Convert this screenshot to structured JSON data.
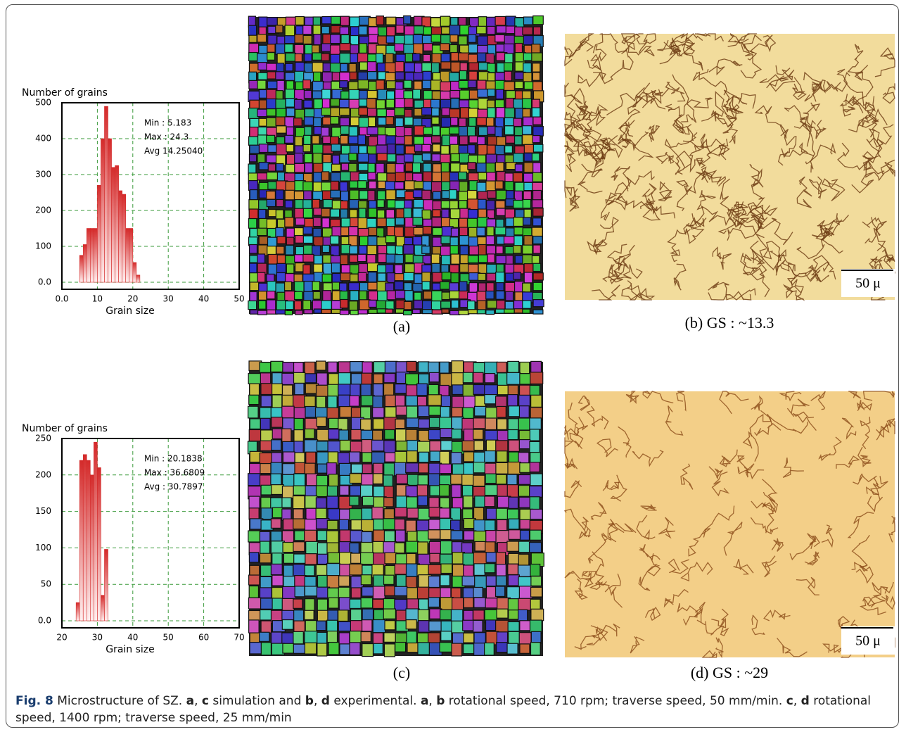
{
  "chart_data": [
    {
      "type": "histogram",
      "y_label": "Number of grains",
      "x_label": "Grain size",
      "bins": [
        5,
        6,
        7,
        8,
        9,
        10,
        11,
        12,
        13,
        14,
        15,
        16,
        17,
        18,
        19,
        20,
        21,
        22
      ],
      "values": [
        75,
        105,
        150,
        150,
        150,
        270,
        400,
        490,
        400,
        320,
        325,
        255,
        245,
        150,
        150,
        55,
        20
      ],
      "color": "#d42a2a",
      "xlim": [
        0,
        50
      ],
      "xticks": [
        {
          "value": 0,
          "label": "0.0"
        },
        10,
        20,
        30,
        40,
        50
      ],
      "ylim": [
        0,
        500
      ],
      "yticks": [
        {
          "value": 0,
          "label": "0.0"
        },
        100,
        200,
        300,
        400,
        500
      ],
      "grid": true,
      "annotations": [
        "Min : 5.183",
        "Max : 24.3",
        "Avg 14.25040"
      ]
    },
    {
      "type": "histogram",
      "y_label": "Number of grains",
      "x_label": "Grain size",
      "bins": [
        24,
        25,
        26,
        27,
        28,
        29,
        30,
        31,
        32,
        33
      ],
      "values": [
        25,
        220,
        228,
        220,
        200,
        245,
        210,
        35,
        98
      ],
      "color": "#d42a2a",
      "xlim": [
        20,
        70
      ],
      "xticks": [
        20,
        30,
        40,
        50,
        60,
        70
      ],
      "ylim": [
        0,
        250
      ],
      "yticks": [
        {
          "value": 0,
          "label": "0.0"
        },
        50,
        100,
        150,
        200,
        250
      ],
      "grid": true,
      "annotations": [
        "Min : 20.1838",
        "Max : 36.6809",
        "Avg : 30.7897"
      ]
    }
  ],
  "panels": [
    "(a)",
    "(b) GS : ~13.3",
    "(c)",
    "(d) GS : ~29"
  ],
  "scale_bars": [
    "50 μ",
    "50 μ"
  ],
  "caption": {
    "label": "Fig. 8",
    "text": [
      "Microstructure of SZ. ",
      "a",
      ", ",
      "c",
      " simulation and ",
      "b",
      ", ",
      "d",
      " experimental. ",
      "a",
      ", ",
      "b",
      " rotational speed, 710 rpm; traverse speed, 50 mm/min. ",
      "c",
      ", ",
      "d",
      " rotational speed, 1400 rpm; traverse speed, 25 mm/min"
    ]
  }
}
